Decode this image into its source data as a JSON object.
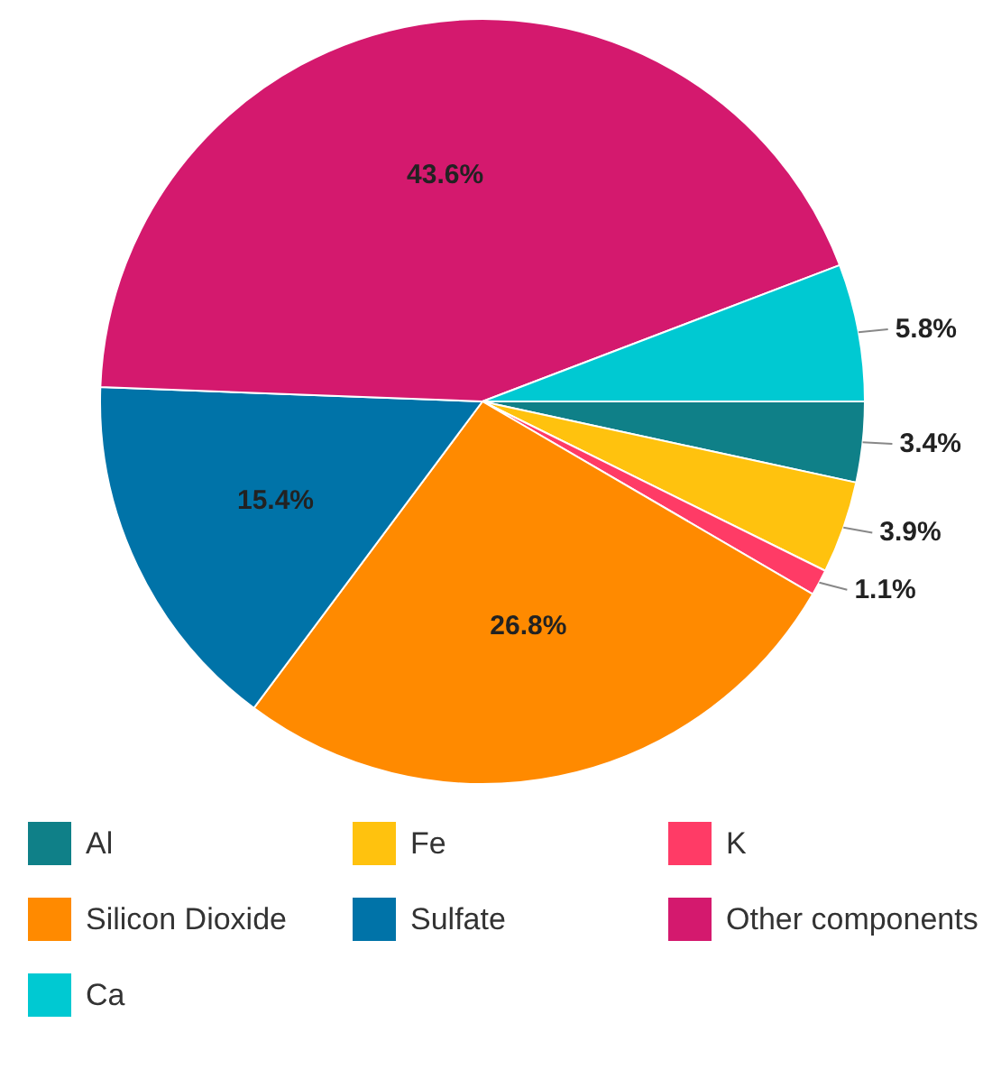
{
  "chart_data": {
    "type": "pie",
    "categories": [
      "Al",
      "Fe",
      "K",
      "Silicon Dioxide",
      "Sulfate",
      "Other components",
      "Ca"
    ],
    "values": [
      3.4,
      3.9,
      1.1,
      26.8,
      15.4,
      43.6,
      5.8
    ],
    "colors": [
      "#0f8088",
      "#ffc20e",
      "#ff3b66",
      "#ff8a00",
      "#0073a8",
      "#d4196e",
      "#00c9d2"
    ],
    "value_labels": [
      "3.4%",
      "3.9%",
      "1.1%",
      "26.8%",
      "15.4%",
      "43.6%",
      "5.8%"
    ],
    "legend": "bottom"
  }
}
